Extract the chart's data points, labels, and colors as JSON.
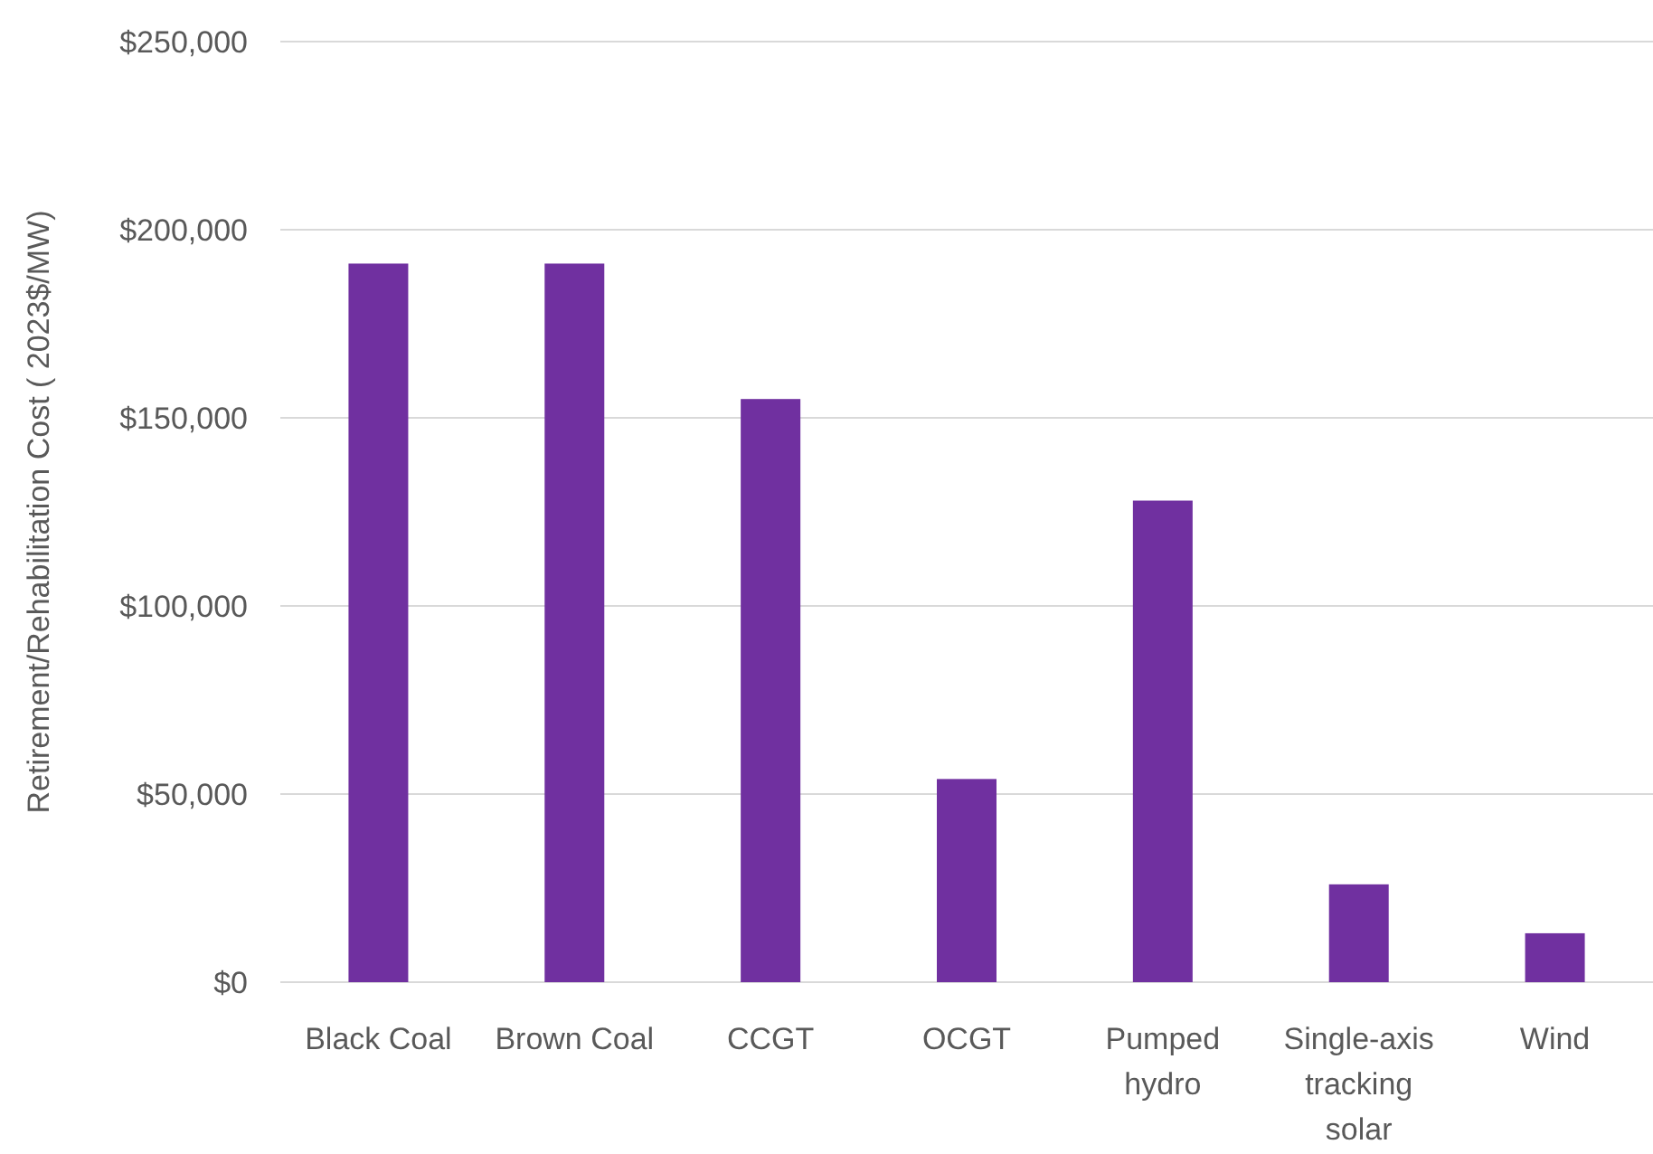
{
  "chart_data": {
    "type": "bar",
    "ylabel": "Retirement/Rehabilitation Cost ( 2023$/MW)",
    "categories": [
      "Black Coal",
      "Brown Coal",
      "CCGT",
      "OCGT",
      "Pumped hydro",
      "Single-axis tracking solar",
      "Wind"
    ],
    "values": [
      191000,
      191000,
      155000,
      54000,
      128000,
      26000,
      13000
    ],
    "color": "#7030a0",
    "ylim": [
      0,
      250000
    ],
    "yticks": [
      {
        "value": 0,
        "label": "$0"
      },
      {
        "value": 50000,
        "label": "$50,000"
      },
      {
        "value": 100000,
        "label": "$100,000"
      },
      {
        "value": 150000,
        "label": "$150,000"
      },
      {
        "value": 200000,
        "label": "$200,000"
      },
      {
        "value": 250000,
        "label": "$250,000"
      }
    ],
    "grid": "y"
  }
}
